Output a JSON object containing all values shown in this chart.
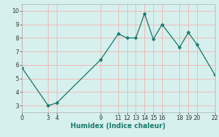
{
  "x": [
    0,
    3,
    4,
    9,
    11,
    12,
    13,
    14,
    15,
    16,
    18,
    19,
    20,
    22
  ],
  "y": [
    5.8,
    3.0,
    3.2,
    6.4,
    8.3,
    8.0,
    8.0,
    9.8,
    7.9,
    9.0,
    7.3,
    8.4,
    7.5,
    5.3
  ],
  "xlim": [
    0,
    22
  ],
  "ylim": [
    2.5,
    10.5
  ],
  "xticks": [
    0,
    3,
    4,
    9,
    11,
    12,
    13,
    14,
    15,
    16,
    18,
    19,
    20,
    22
  ],
  "yticks": [
    3,
    4,
    5,
    6,
    7,
    8,
    9,
    10
  ],
  "xlabel": "Humidex (Indice chaleur)",
  "line_color": "#1a7a6e",
  "bg_color": "#d6f0ed",
  "grid_color": "#f0b8b8",
  "tick_fontsize": 6,
  "xlabel_fontsize": 7
}
